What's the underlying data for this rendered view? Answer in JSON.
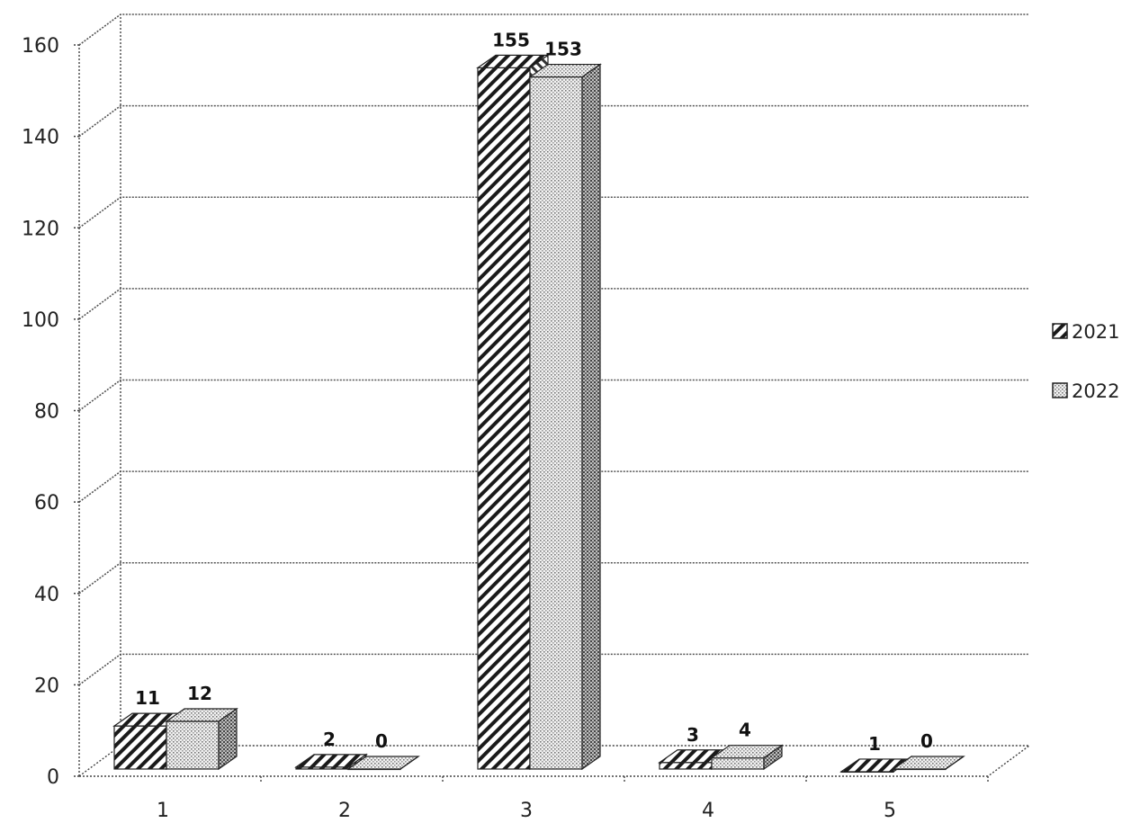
{
  "chart_data": {
    "type": "bar",
    "categories": [
      "1",
      "2",
      "3",
      "4",
      "5"
    ],
    "series": [
      {
        "name": "2021",
        "values": [
          11,
          2,
          155,
          3,
          1
        ],
        "pattern": "diagonal-hatch"
      },
      {
        "name": "2022",
        "values": [
          12,
          0,
          153,
          4,
          0
        ],
        "pattern": "dotted"
      }
    ],
    "ylim": [
      0,
      160
    ],
    "yticks": [
      0,
      20,
      40,
      60,
      80,
      100,
      120,
      140,
      160
    ],
    "grid": true,
    "legend": "right",
    "style": "3d-clustered-column"
  }
}
